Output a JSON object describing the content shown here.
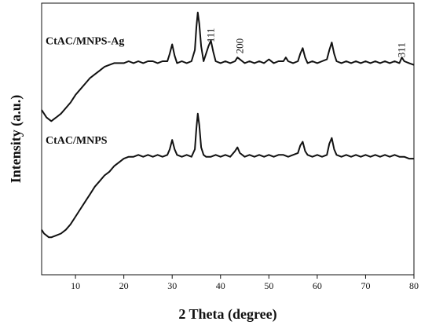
{
  "chart_data": {
    "type": "line",
    "xlabel": "2 Theta (degree)",
    "ylabel": "Intensity (a.u.)",
    "xlim": [
      3,
      80
    ],
    "xticks": [
      10,
      20,
      30,
      40,
      50,
      60,
      70,
      80
    ],
    "yticks_shown": false,
    "grid": false,
    "legend": "none",
    "annotations": [
      {
        "text": "111",
        "x": 38.0
      },
      {
        "text": "200",
        "x": 44.0
      },
      {
        "text": "311",
        "x": 77.5
      }
    ],
    "series": [
      {
        "name": "CtAC/MNPS-Ag",
        "color": "#111111",
        "x": [
          3.0,
          3.5,
          4.0,
          4.5,
          5.0,
          5.5,
          6.0,
          7.0,
          8.0,
          9.0,
          10.0,
          11.0,
          12.0,
          13.0,
          14.0,
          15.0,
          16.0,
          17.0,
          18.0,
          19.0,
          20.0,
          21.0,
          22.0,
          23.0,
          24.0,
          25.0,
          26.0,
          27.0,
          28.0,
          29.0,
          29.5,
          30.0,
          30.5,
          31.0,
          32.0,
          33.0,
          34.0,
          34.7,
          35.0,
          35.3,
          35.6,
          36.0,
          36.5,
          37.0,
          37.5,
          38.0,
          38.5,
          39.0,
          40.0,
          41.0,
          42.0,
          43.0,
          43.5,
          44.0,
          45.0,
          46.0,
          47.0,
          48.0,
          49.0,
          50.0,
          51.0,
          52.0,
          53.0,
          53.5,
          54.0,
          55.0,
          56.0,
          56.5,
          57.0,
          57.5,
          58.0,
          59.0,
          60.0,
          61.0,
          62.0,
          62.5,
          63.0,
          63.5,
          64.0,
          65.0,
          66.0,
          67.0,
          68.0,
          69.0,
          70.0,
          71.0,
          72.0,
          73.0,
          74.0,
          75.0,
          76.0,
          77.0,
          77.5,
          78.0,
          79.0,
          80.0
        ],
        "y": [
          88,
          86,
          84,
          83,
          82,
          83,
          84,
          86,
          89,
          92,
          96,
          99,
          102,
          105,
          107,
          109,
          111,
          112,
          113,
          113,
          113,
          114,
          113,
          114,
          113,
          114,
          114,
          113,
          114,
          114,
          118,
          123,
          117,
          113,
          114,
          113,
          114,
          120,
          132,
          140,
          134,
          122,
          114,
          118,
          122,
          125,
          119,
          114,
          113,
          114,
          113,
          114,
          116,
          115,
          113,
          114,
          113,
          114,
          113,
          115,
          113,
          114,
          114,
          116,
          114,
          113,
          114,
          118,
          121,
          116,
          113,
          114,
          113,
          114,
          115,
          120,
          124,
          118,
          114,
          113,
          114,
          113,
          114,
          113,
          114,
          113,
          114,
          113,
          114,
          113,
          114,
          113,
          116,
          114,
          113,
          112
        ]
      },
      {
        "name": "CtAC/MNPS",
        "color": "#111111",
        "x": [
          3.0,
          3.5,
          4.0,
          4.5,
          5.0,
          6.0,
          7.0,
          8.0,
          9.0,
          10.0,
          11.0,
          12.0,
          13.0,
          14.0,
          15.0,
          16.0,
          17.0,
          18.0,
          19.0,
          20.0,
          21.0,
          22.0,
          23.0,
          24.0,
          25.0,
          26.0,
          27.0,
          28.0,
          29.0,
          29.5,
          30.0,
          30.5,
          31.0,
          32.0,
          33.0,
          34.0,
          34.7,
          35.0,
          35.3,
          35.6,
          36.0,
          36.5,
          37.0,
          38.0,
          39.0,
          40.0,
          41.0,
          42.0,
          43.0,
          43.5,
          44.0,
          45.0,
          46.0,
          47.0,
          48.0,
          49.0,
          50.0,
          51.0,
          52.0,
          53.0,
          54.0,
          55.0,
          56.0,
          56.5,
          57.0,
          57.5,
          58.0,
          59.0,
          60.0,
          61.0,
          62.0,
          62.5,
          63.0,
          63.5,
          64.0,
          65.0,
          66.0,
          67.0,
          68.0,
          69.0,
          70.0,
          71.0,
          72.0,
          73.0,
          74.0,
          75.0,
          76.0,
          77.0,
          78.0,
          79.0,
          80.0
        ],
        "y": [
          24,
          22,
          21,
          20,
          20,
          21,
          22,
          24,
          27,
          31,
          35,
          39,
          43,
          47,
          50,
          53,
          55,
          58,
          60,
          62,
          63,
          63,
          64,
          63,
          64,
          63,
          64,
          63,
          64,
          67,
          72,
          67,
          64,
          63,
          64,
          63,
          67,
          78,
          86,
          80,
          68,
          64,
          63,
          63,
          64,
          63,
          64,
          63,
          66,
          68,
          65,
          63,
          64,
          63,
          64,
          63,
          64,
          63,
          64,
          64,
          63,
          64,
          65,
          69,
          71,
          66,
          64,
          63,
          64,
          63,
          64,
          70,
          73,
          67,
          64,
          63,
          64,
          63,
          64,
          63,
          64,
          63,
          64,
          63,
          64,
          63,
          64,
          63,
          63,
          62,
          62
        ]
      }
    ]
  }
}
